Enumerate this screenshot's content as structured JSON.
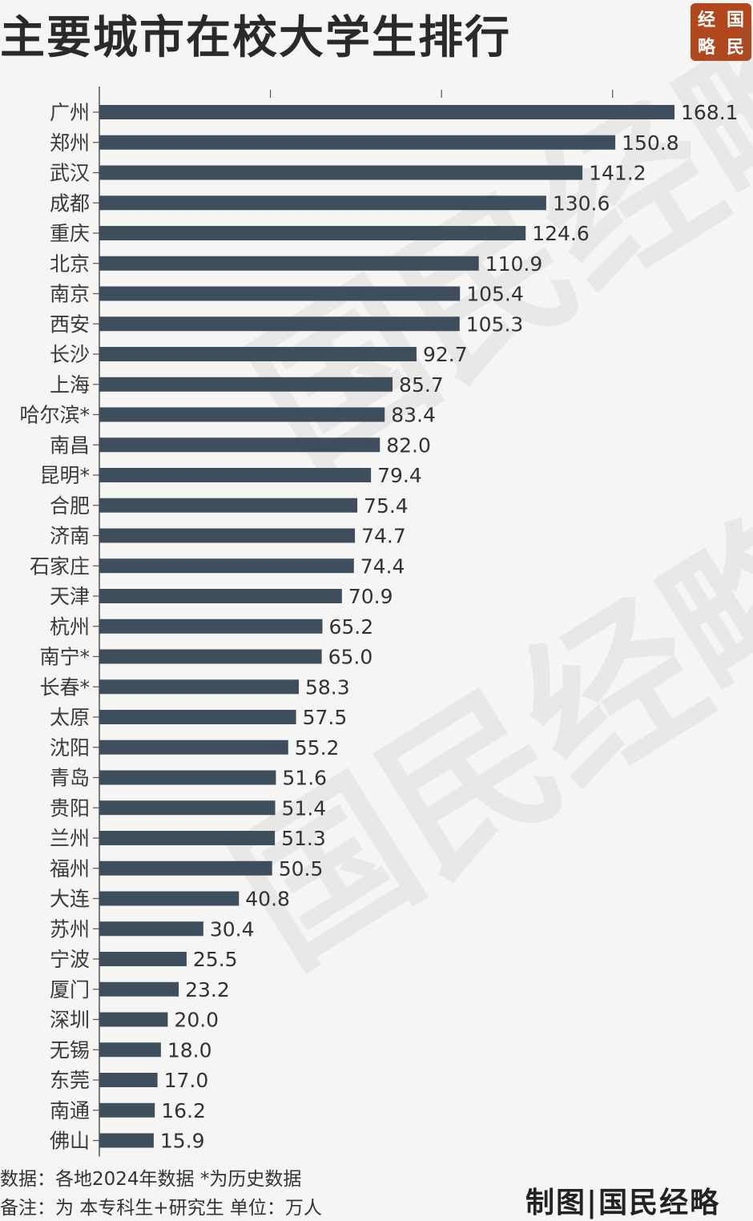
{
  "title": "主要城市在校大学生排行",
  "logo": {
    "chars": [
      "经",
      "国",
      "略",
      "民"
    ]
  },
  "watermark": "国民经略",
  "footnotes": {
    "source": "数据：各地2024年数据 *为历史数据",
    "note": "备注：为 本专科生+研究生   单位：万人"
  },
  "credit": "制图|国民经略",
  "colors": {
    "bar": "#3f4e5c",
    "logo_bg": "#b2461c",
    "background": "#f5f5f3"
  },
  "chart_data": {
    "type": "bar",
    "orientation": "horizontal",
    "categories": [
      "广州",
      "郑州",
      "武汉",
      "成都",
      "重庆",
      "北京",
      "南京",
      "西安",
      "长沙",
      "上海",
      "哈尔滨*",
      "南昌",
      "昆明*",
      "合肥",
      "济南",
      "石家庄",
      "天津",
      "杭州",
      "南宁*",
      "长春*",
      "太原",
      "沈阳",
      "青岛",
      "贵阳",
      "兰州",
      "福州",
      "大连",
      "苏州",
      "宁波",
      "厦门",
      "深圳",
      "无锡",
      "东莞",
      "南通",
      "佛山"
    ],
    "values": [
      168.1,
      150.8,
      141.2,
      130.6,
      124.6,
      110.9,
      105.4,
      105.3,
      92.7,
      85.7,
      83.4,
      82.0,
      79.4,
      75.4,
      74.7,
      74.4,
      70.9,
      65.2,
      65.0,
      58.3,
      57.5,
      55.2,
      51.6,
      51.4,
      51.3,
      50.5,
      40.8,
      30.4,
      25.5,
      23.2,
      20.0,
      18.0,
      17.0,
      16.2,
      15.9
    ],
    "labels": [
      "168.1",
      "150.8",
      "141.2",
      "130.6",
      "124.6",
      "110.9",
      "105.4",
      "105.3",
      "92.7",
      "85.7",
      "83.4",
      "82.0",
      "79.4",
      "75.4",
      "74.7",
      "74.4",
      "70.9",
      "65.2",
      "65.0",
      "58.3",
      "57.5",
      "55.2",
      "51.6",
      "51.4",
      "51.3",
      "50.5",
      "40.8",
      "30.4",
      "25.5",
      "23.2",
      "20.0",
      "18.0",
      "17.0",
      "16.2",
      "15.9"
    ],
    "xlim": [
      0,
      200
    ],
    "grid": false
  }
}
